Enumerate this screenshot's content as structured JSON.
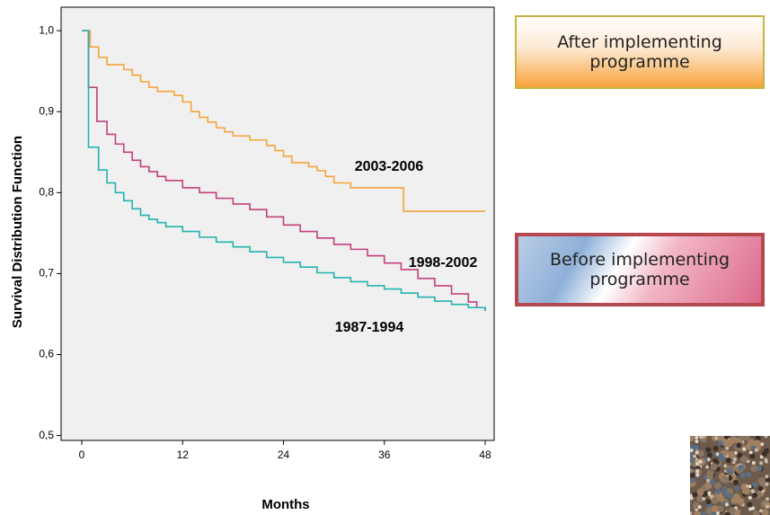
{
  "chart_data": {
    "type": "step",
    "xlabel": "Months",
    "ylabel": "Survival Distribution Function",
    "xlim": [
      -2.46,
      49.07
    ],
    "ylim": [
      0.494,
      1.029
    ],
    "xticks": [
      0,
      12,
      24,
      36,
      48
    ],
    "yticks": [
      {
        "value": 0.5,
        "label": "0,5"
      },
      {
        "value": 0.6,
        "label": "0,6"
      },
      {
        "value": 0.7,
        "label": "0,7"
      },
      {
        "value": 0.8,
        "label": "0,8"
      },
      {
        "value": 0.9,
        "label": "0,9"
      },
      {
        "value": 1.0,
        "label": "1,0"
      }
    ],
    "series": [
      {
        "name": "2003-2006",
        "color": "#f5a43a",
        "x": [
          0,
          1,
          2,
          3,
          5,
          6,
          7,
          8,
          9,
          11,
          12,
          13,
          14,
          15,
          16,
          17,
          18,
          20,
          22,
          23,
          24,
          25,
          27,
          28,
          29,
          30,
          32,
          38.3,
          48
        ],
        "values": [
          1.0,
          0.98,
          0.967,
          0.958,
          0.952,
          0.945,
          0.937,
          0.93,
          0.925,
          0.92,
          0.912,
          0.9,
          0.893,
          0.887,
          0.88,
          0.875,
          0.87,
          0.865,
          0.858,
          0.852,
          0.845,
          0.837,
          0.832,
          0.827,
          0.82,
          0.812,
          0.806,
          0.777,
          0.777
        ]
      },
      {
        "name": "1998-2002",
        "color": "#c2407e",
        "x": [
          0,
          0.8,
          1.8,
          3,
          4,
          5,
          6,
          7,
          8,
          9,
          10,
          12,
          14,
          16,
          18,
          20,
          22,
          24,
          26,
          28,
          30,
          32,
          34,
          36,
          38,
          40,
          42,
          44,
          46,
          47,
          48
        ],
        "values": [
          1.0,
          0.93,
          0.888,
          0.872,
          0.86,
          0.85,
          0.84,
          0.832,
          0.826,
          0.82,
          0.815,
          0.806,
          0.8,
          0.793,
          0.786,
          0.779,
          0.77,
          0.76,
          0.752,
          0.744,
          0.736,
          0.73,
          0.722,
          0.713,
          0.705,
          0.694,
          0.685,
          0.675,
          0.665,
          0.658,
          0.654
        ]
      },
      {
        "name": "1987-1994",
        "color": "#22b3ac",
        "x": [
          0,
          0.8,
          2,
          3,
          4,
          5,
          6,
          7,
          8,
          9,
          10,
          12,
          14,
          16,
          18,
          20,
          22,
          24,
          26,
          28,
          30,
          32,
          34,
          36,
          38,
          40,
          42,
          44,
          46,
          48
        ],
        "values": [
          1.0,
          0.856,
          0.828,
          0.812,
          0.8,
          0.79,
          0.78,
          0.772,
          0.767,
          0.763,
          0.758,
          0.752,
          0.745,
          0.739,
          0.733,
          0.727,
          0.72,
          0.714,
          0.708,
          0.701,
          0.695,
          0.69,
          0.685,
          0.681,
          0.676,
          0.671,
          0.666,
          0.662,
          0.658,
          0.654
        ]
      }
    ],
    "annotations": [
      "After implementing programme",
      "Before implementing programme"
    ]
  }
}
